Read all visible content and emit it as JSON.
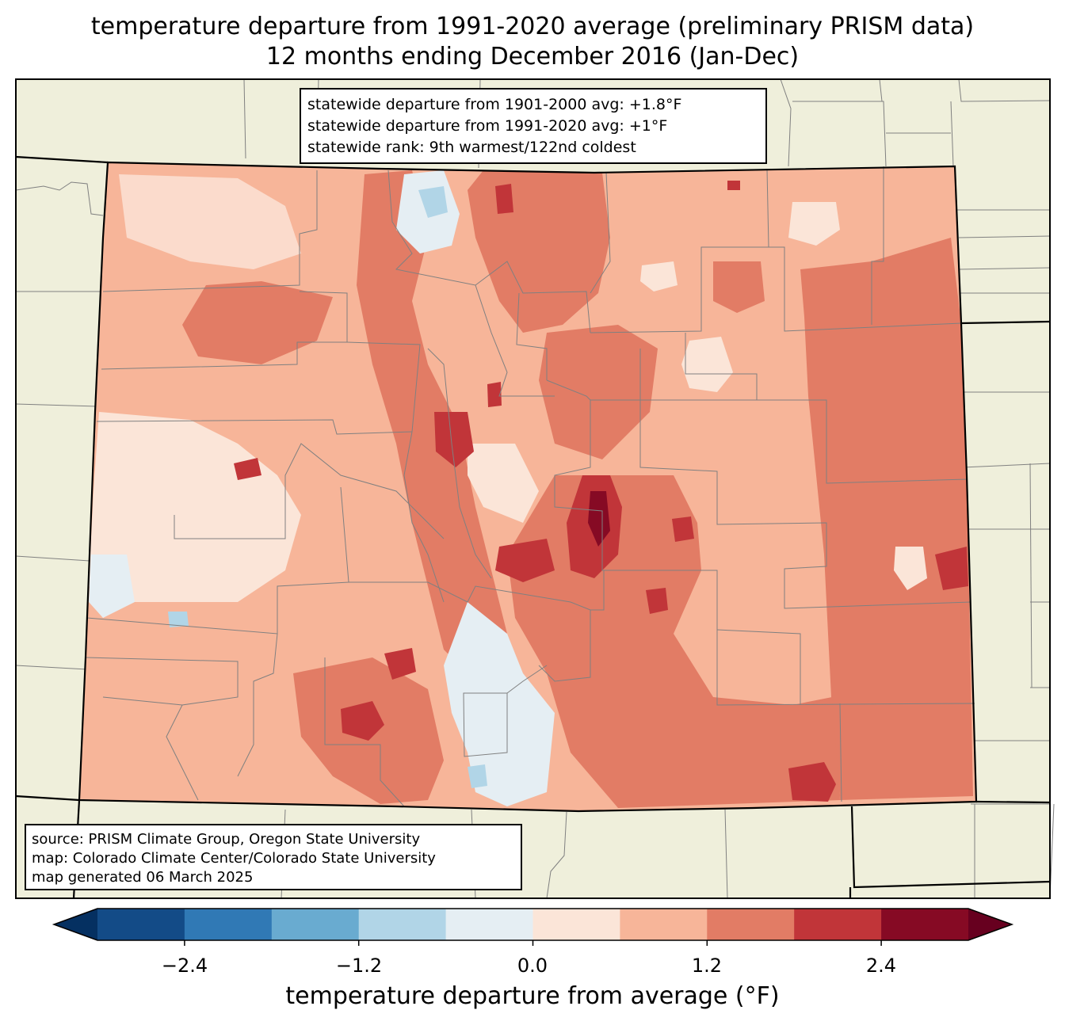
{
  "title": {
    "line1": "temperature departure from 1991-2020 average (preliminary PRISM data)",
    "line2": "12 months ending December 2016 (Jan-Dec)"
  },
  "stats_box": {
    "lines": [
      "statewide departure from 1901-2000 avg: +1.8°F",
      "statewide departure from 1991-2020 avg: +1°F",
      "statewide rank: 9th warmest/122nd coldest"
    ]
  },
  "source_box": {
    "lines": [
      "source: PRISM Climate Group, Oregon State University",
      "map: Colorado Climate Center/Colorado State University",
      "map generated 06 March 2025"
    ]
  },
  "colorbar": {
    "label": "temperature departure from average (°F)",
    "ticks": [
      "−2.4",
      "−1.2",
      "0.0",
      "1.2",
      "2.4"
    ],
    "tick_values": [
      -2.4,
      -1.2,
      0.0,
      1.2,
      2.4
    ],
    "bounds": [
      -3.0,
      -2.4,
      -1.8,
      -1.2,
      -0.6,
      0.0,
      0.6,
      1.2,
      1.8,
      2.4,
      3.0
    ],
    "colors": [
      "#134b87",
      "#3079b5",
      "#69abd0",
      "#b1d5e7",
      "#e5eef3",
      "#fbe5d8",
      "#f7b599",
      "#e27c65",
      "#c13539",
      "#860a24"
    ],
    "under_color": "#053061",
    "over_color": "#67001f"
  },
  "map_colors": {
    "land_background": "#efefdb",
    "state_outline": "#000000",
    "county_line": "#808080"
  }
}
